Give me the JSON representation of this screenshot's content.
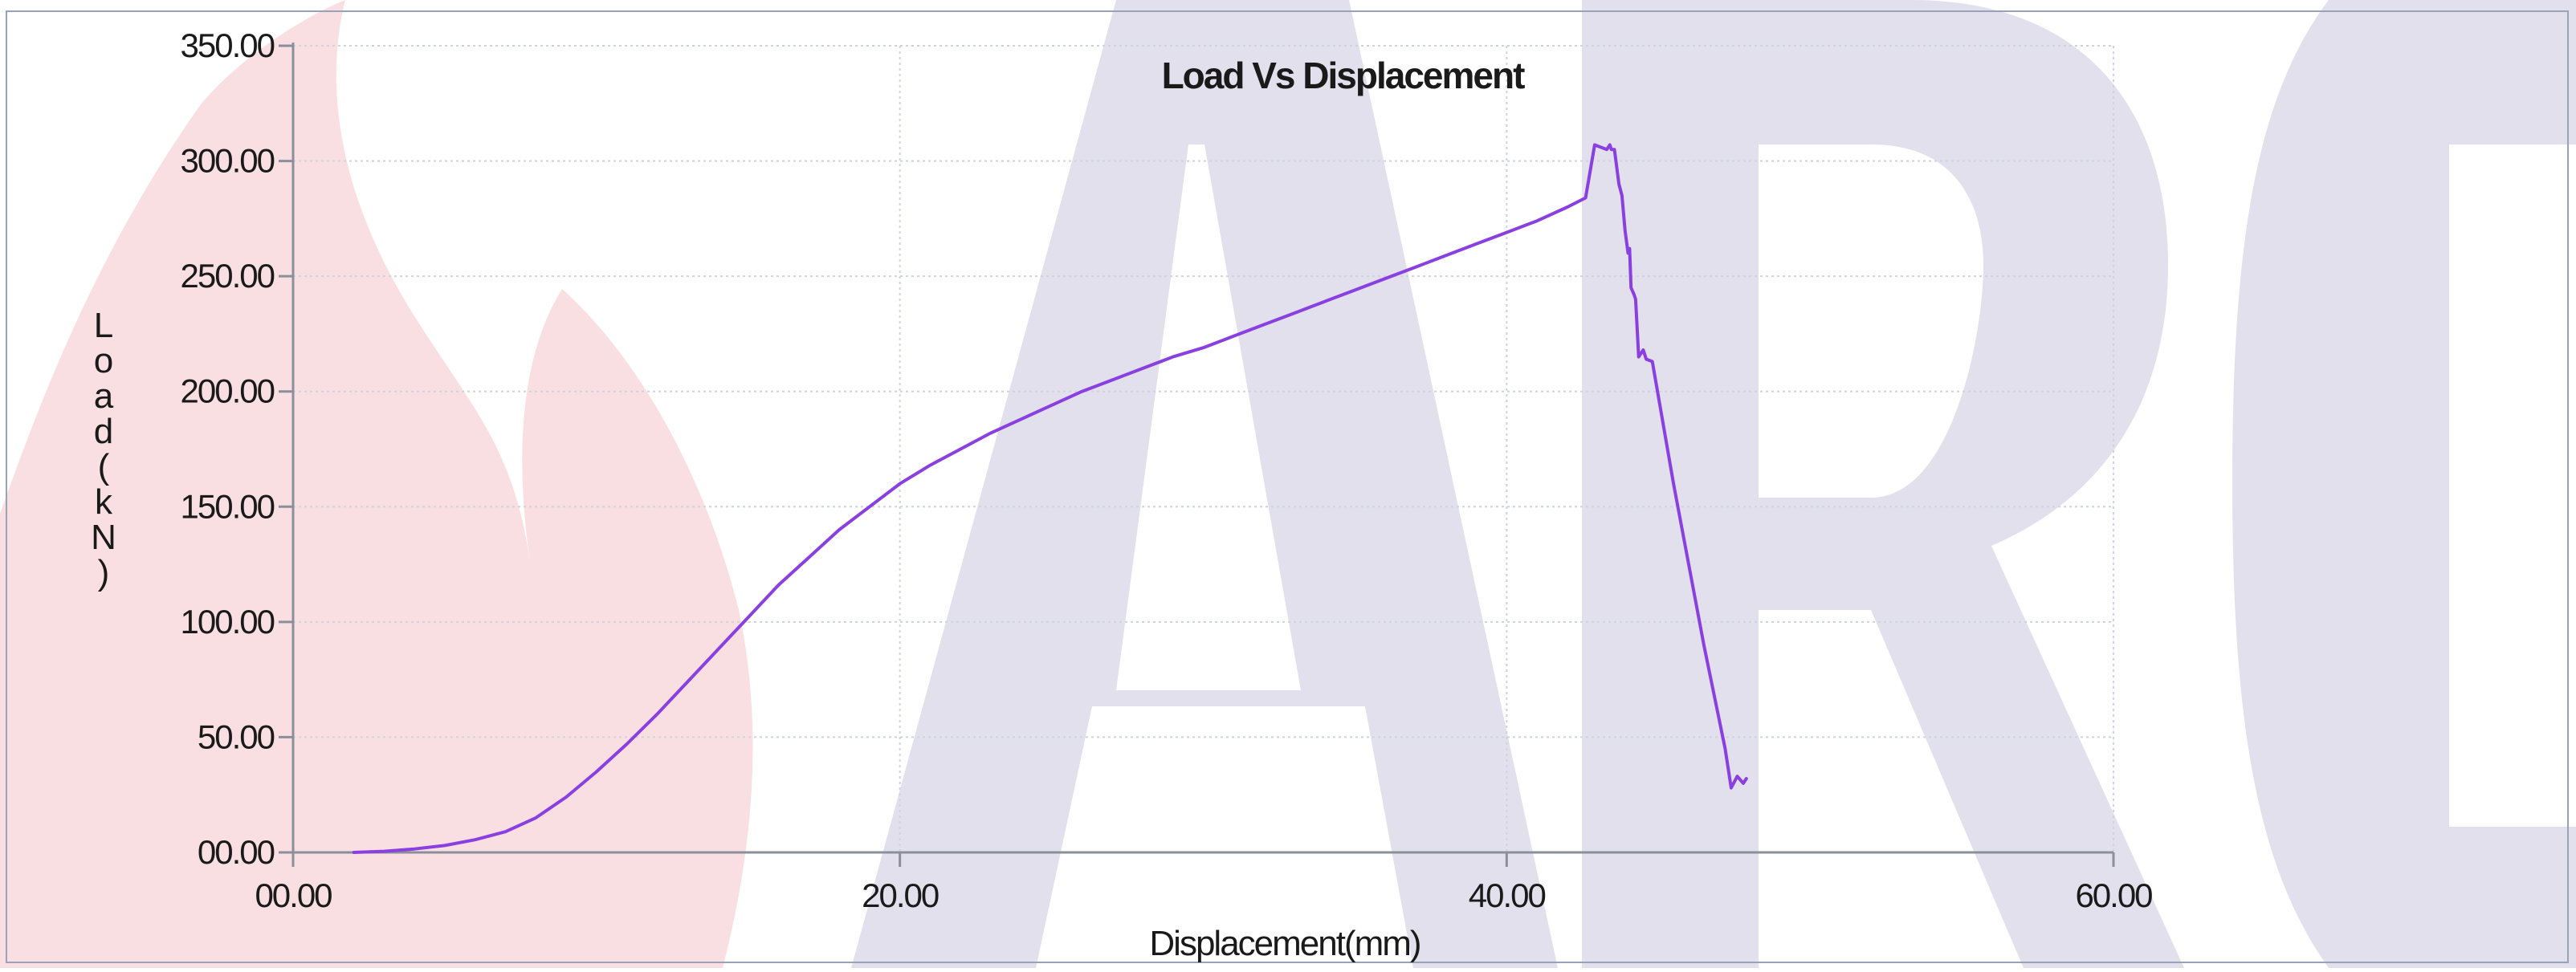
{
  "colors": {
    "series": "#8a3fe0",
    "flame": "#f9dfe2",
    "watermark": "#e1e0ec",
    "grid": "#cfd3e0",
    "axis": "#8a8f99",
    "frame": "#9aa3b5"
  },
  "watermark": {
    "text": "ARC"
  },
  "chart_data": {
    "type": "line",
    "title": "Load Vs Displacement",
    "xlabel": "Displacement(mm)",
    "ylabel": "Load(kN)",
    "xlim": [
      0,
      60
    ],
    "ylim": [
      0,
      350
    ],
    "x_ticks": [
      0,
      20,
      40,
      60
    ],
    "x_tick_labels": [
      "00.00",
      "20.00",
      "40.00",
      "60.00"
    ],
    "y_ticks": [
      0,
      50,
      100,
      150,
      200,
      250,
      300,
      350
    ],
    "y_tick_labels": [
      "00.00",
      "50.00",
      "100.00",
      "150.00",
      "200.00",
      "250.00",
      "300.00",
      "350.00"
    ],
    "grid": true,
    "legend": "none",
    "series": [
      {
        "x": [
          2.0,
          3.0,
          4.0,
          5.0,
          6.0,
          7.0,
          8.0,
          9.0,
          10.0,
          11.0,
          12.0,
          13.0,
          14.0,
          15.0,
          16.0,
          17.0,
          18.0,
          19.0,
          20.0,
          21.0,
          22.0,
          23.0,
          24.0,
          25.0,
          26.0,
          27.0,
          28.0,
          29.0,
          30.0,
          31.0,
          32.0,
          33.0,
          34.0,
          35.0,
          36.0,
          37.0,
          38.0,
          39.0,
          40.0,
          41.0,
          42.0,
          42.6,
          42.9,
          43.3,
          43.4,
          43.45,
          43.55,
          43.6,
          43.7,
          43.8,
          43.9,
          44.0,
          44.05,
          44.1,
          44.2,
          44.25,
          44.35,
          44.5,
          44.6,
          44.8,
          45.5,
          46.5,
          47.2,
          47.4,
          47.6,
          47.8,
          47.9
        ],
        "y": [
          0,
          0.5,
          1.5,
          3,
          5.5,
          9,
          15,
          24,
          35,
          47,
          60,
          74,
          88,
          102,
          116,
          128,
          140,
          150,
          160,
          168,
          175,
          182,
          188,
          194,
          200,
          205,
          210,
          215,
          219,
          224,
          229,
          234,
          239,
          244,
          249,
          254,
          259,
          264,
          269,
          274,
          280,
          284,
          307,
          305,
          307,
          305,
          305,
          300,
          290,
          285,
          270,
          260,
          262,
          245,
          242,
          240,
          215,
          218,
          214,
          213,
          160,
          90,
          45,
          28,
          33,
          30,
          32
        ]
      }
    ]
  }
}
